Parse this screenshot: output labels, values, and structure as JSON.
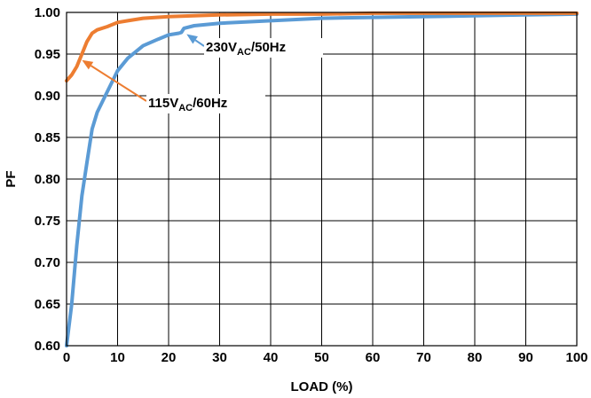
{
  "chart_data": {
    "type": "line",
    "xlabel": "LOAD (%)",
    "ylabel": "PF",
    "xlim": [
      0,
      100
    ],
    "ylim": [
      0.6,
      1.0
    ],
    "grid": true,
    "x_ticks": [
      "0",
      "10",
      "20",
      "30",
      "40",
      "50",
      "60",
      "70",
      "80",
      "90",
      "100"
    ],
    "y_ticks": [
      "0.60",
      "0.65",
      "0.70",
      "0.75",
      "0.80",
      "0.85",
      "0.90",
      "0.95",
      "1.00"
    ],
    "series": [
      {
        "color": "#5b9bd5",
        "points": [
          [
            0,
            0.6
          ],
          [
            1,
            0.65
          ],
          [
            2,
            0.72
          ],
          [
            3,
            0.78
          ],
          [
            4,
            0.82
          ],
          [
            5,
            0.86
          ],
          [
            6,
            0.88
          ],
          [
            8,
            0.905
          ],
          [
            10,
            0.93
          ],
          [
            12,
            0.945
          ],
          [
            15,
            0.96
          ],
          [
            18,
            0.968
          ],
          [
            20,
            0.973
          ],
          [
            22,
            0.975
          ],
          [
            22.5,
            0.976
          ],
          [
            23,
            0.981
          ],
          [
            25,
            0.984
          ],
          [
            30,
            0.987
          ],
          [
            40,
            0.99
          ],
          [
            50,
            0.993
          ],
          [
            60,
            0.994
          ],
          [
            70,
            0.995
          ],
          [
            80,
            0.996
          ],
          [
            90,
            0.997
          ],
          [
            100,
            0.998
          ]
        ]
      },
      {
        "color": "#ed7d31",
        "points": [
          [
            0,
            0.918
          ],
          [
            1,
            0.925
          ],
          [
            2,
            0.935
          ],
          [
            3,
            0.95
          ],
          [
            4,
            0.965
          ],
          [
            5,
            0.975
          ],
          [
            6,
            0.979
          ],
          [
            8,
            0.983
          ],
          [
            10,
            0.988
          ],
          [
            12,
            0.99
          ],
          [
            15,
            0.993
          ],
          [
            20,
            0.995
          ],
          [
            30,
            0.997
          ],
          [
            40,
            0.998
          ],
          [
            50,
            0.998
          ],
          [
            60,
            0.999
          ],
          [
            70,
            0.999
          ],
          [
            80,
            0.999
          ],
          [
            90,
            0.999
          ],
          [
            100,
            0.999
          ]
        ]
      }
    ],
    "annotations": [
      {
        "main": "230V",
        "sub": "AC",
        "rest": "/50Hz",
        "color": "#5b9bd5",
        "target": [
          23,
          0.976
        ]
      },
      {
        "main": "115V",
        "sub": "AC",
        "rest": "/60Hz",
        "color": "#ed7d31",
        "target": [
          2.5,
          0.945
        ]
      }
    ]
  }
}
